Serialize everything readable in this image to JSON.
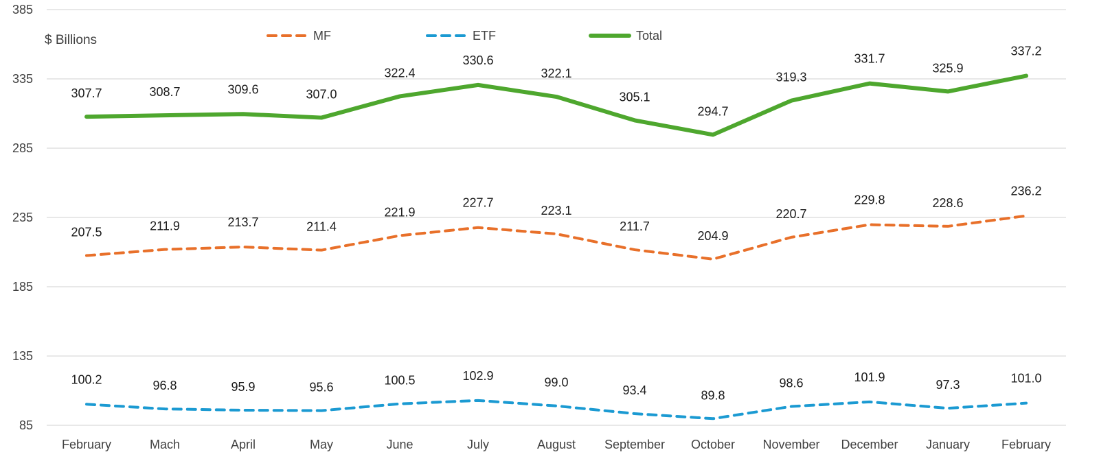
{
  "chart_data": {
    "type": "line",
    "ylabel": "$ Billions",
    "ylim": [
      85,
      385
    ],
    "yticks": [
      85,
      135,
      185,
      235,
      285,
      335,
      385
    ],
    "grid": true,
    "legend_position": "top",
    "categories": [
      "February",
      "Mach",
      "April",
      "May",
      "June",
      "July",
      "August",
      "September",
      "October",
      "November",
      "December",
      "January",
      "February"
    ],
    "series": [
      {
        "name": "MF",
        "style": "dashed",
        "color": "#E8702A",
        "values": [
          207.5,
          211.9,
          213.7,
          211.4,
          221.9,
          227.7,
          223.1,
          211.7,
          204.9,
          220.7,
          229.8,
          228.6,
          236.2
        ],
        "labels": [
          "207.5",
          "211.9",
          "213.7",
          "211.4",
          "221.9",
          "227.7",
          "223.1",
          "211.7",
          "204.9",
          "220.7",
          "229.8",
          "228.6",
          "236.2"
        ]
      },
      {
        "name": "ETF",
        "style": "dashed",
        "color": "#1B9AD2",
        "values": [
          100.2,
          96.8,
          95.9,
          95.6,
          100.5,
          102.9,
          99.0,
          93.4,
          89.8,
          98.6,
          101.9,
          97.3,
          101.0
        ],
        "labels": [
          "100.2",
          "96.8",
          "95.9",
          "95.6",
          "100.5",
          "102.9",
          "99.0",
          "93.4",
          "89.8",
          "98.6",
          "101.9",
          "97.3",
          "101.0"
        ]
      },
      {
        "name": "Total",
        "style": "solid",
        "color": "#4EA72E",
        "values": [
          307.7,
          308.7,
          309.6,
          307.0,
          322.4,
          330.6,
          322.1,
          305.1,
          294.7,
          319.3,
          331.7,
          325.9,
          337.2
        ],
        "labels": [
          "307.7",
          "308.7",
          "309.6",
          "307.0",
          "322.4",
          "330.6",
          "322.1",
          "305.1",
          "294.7",
          "319.3",
          "331.7",
          "325.9",
          "337.2"
        ]
      }
    ]
  }
}
